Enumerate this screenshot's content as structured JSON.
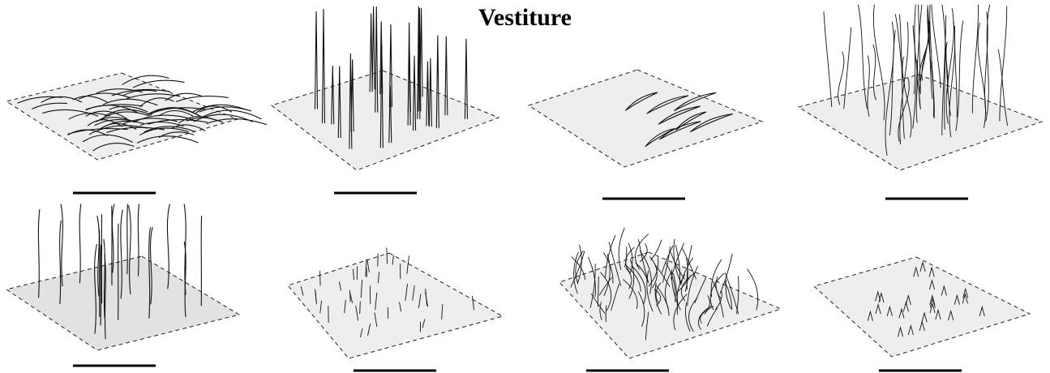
{
  "title": "Vestiture",
  "panels": [
    {
      "type": "appressed-curved"
    },
    {
      "type": "erect-straight-tapered"
    },
    {
      "type": "sparse-crescent-scales"
    },
    {
      "type": "long-wavy-dense"
    },
    {
      "type": "erect-wavy-long"
    },
    {
      "type": "short-sparse-bristles"
    },
    {
      "type": "tangled-dense"
    },
    {
      "type": "minute-forked"
    }
  ]
}
